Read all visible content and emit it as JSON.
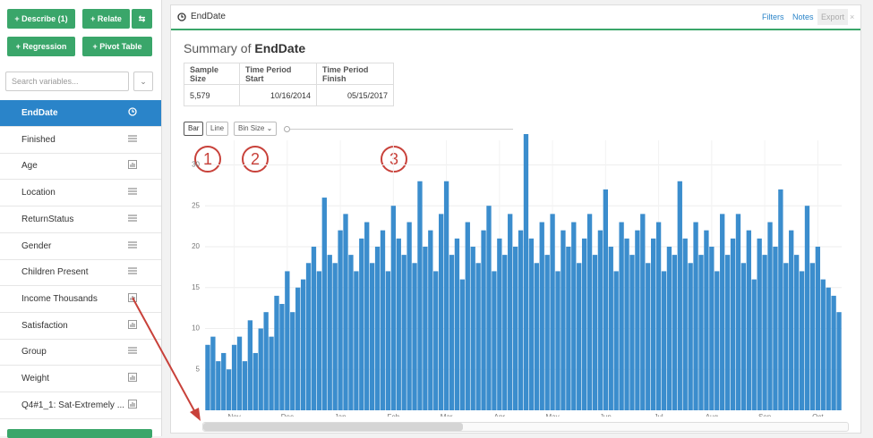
{
  "sidebar": {
    "buttons": [
      "+ Describe (1)",
      "+ Relate",
      "+ Regression",
      "+ Pivot Table"
    ],
    "search_placeholder": "Search variables...",
    "selected": 0,
    "variables": [
      {
        "name": "EndDate",
        "icon": "clock"
      },
      {
        "name": "Finished",
        "icon": "list"
      },
      {
        "name": "Age",
        "icon": "bars"
      },
      {
        "name": "Location",
        "icon": "list"
      },
      {
        "name": "ReturnStatus",
        "icon": "list"
      },
      {
        "name": "Gender",
        "icon": "list"
      },
      {
        "name": "Children Present",
        "icon": "list"
      },
      {
        "name": "Income Thousands",
        "icon": "bars"
      },
      {
        "name": "Satisfaction",
        "icon": "bars"
      },
      {
        "name": "Group",
        "icon": "list"
      },
      {
        "name": "Weight",
        "icon": "bars"
      },
      {
        "name": "Q4#1_1: Sat-Extremely ...",
        "icon": "bars"
      }
    ]
  },
  "panel": {
    "title": "EndDate",
    "actions": [
      "Filters",
      "Notes",
      "Export"
    ],
    "summary_prefix": "Summary of",
    "summary_name": "EndDate",
    "table": {
      "headers": [
        "Sample Size",
        "Time Period Start",
        "Time Period Finish"
      ],
      "rows": [
        [
          "5,579",
          "10/16/2014",
          "05/15/2017"
        ]
      ]
    },
    "controls": [
      "Bar",
      "Line",
      "Bin Size"
    ],
    "annotations": [
      "1",
      "2",
      "3"
    ]
  },
  "chart_data": {
    "type": "bar",
    "color": "#3b8dcd",
    "grid": true,
    "ylim": [
      0,
      33
    ],
    "yticks": [
      5,
      10,
      15,
      20,
      25,
      30
    ],
    "categories": [
      null,
      null,
      null,
      null,
      null,
      "Nov",
      null,
      null,
      null,
      null,
      null,
      null,
      null,
      null,
      null,
      "Dec",
      null,
      null,
      null,
      null,
      null,
      null,
      null,
      null,
      null,
      "Jan",
      null,
      null,
      null,
      null,
      null,
      null,
      null,
      null,
      null,
      "Feb",
      null,
      null,
      null,
      null,
      null,
      null,
      null,
      null,
      null,
      "Mar",
      null,
      null,
      null,
      null,
      null,
      null,
      null,
      null,
      null,
      "Apr",
      null,
      null,
      null,
      null,
      null,
      null,
      null,
      null,
      null,
      "May",
      null,
      null,
      null,
      null,
      null,
      null,
      null,
      null,
      null,
      "Jun",
      null,
      null,
      null,
      null,
      null,
      null,
      null,
      null,
      null,
      "Jul",
      null,
      null,
      null,
      null,
      null,
      null,
      null,
      null,
      null,
      "Aug",
      null,
      null,
      null,
      null,
      null,
      null,
      null,
      null,
      null,
      "Sep",
      null,
      null,
      null,
      null,
      null,
      null,
      null,
      null,
      null,
      "Oct",
      null,
      null,
      null,
      null
    ],
    "values": [
      8,
      9,
      6,
      7,
      5,
      8,
      9,
      6,
      11,
      7,
      10,
      12,
      9,
      14,
      13,
      17,
      12,
      15,
      16,
      18,
      20,
      17,
      26,
      19,
      18,
      22,
      24,
      19,
      17,
      21,
      23,
      18,
      20,
      22,
      17,
      25,
      21,
      19,
      23,
      18,
      28,
      20,
      22,
      17,
      24,
      28,
      19,
      21,
      16,
      23,
      20,
      18,
      22,
      25,
      17,
      21,
      19,
      24,
      20,
      22,
      35,
      21,
      18,
      23,
      19,
      24,
      17,
      22,
      20,
      23,
      18,
      21,
      24,
      19,
      22,
      27,
      20,
      17,
      23,
      21,
      19,
      22,
      24,
      18,
      21,
      23,
      17,
      20,
      19,
      28,
      21,
      18,
      23,
      19,
      22,
      20,
      17,
      24,
      19,
      21,
      24,
      18,
      22,
      16,
      21,
      19,
      23,
      20,
      27,
      18,
      22,
      19,
      17,
      25,
      18,
      20,
      16,
      15,
      14,
      12
    ]
  }
}
